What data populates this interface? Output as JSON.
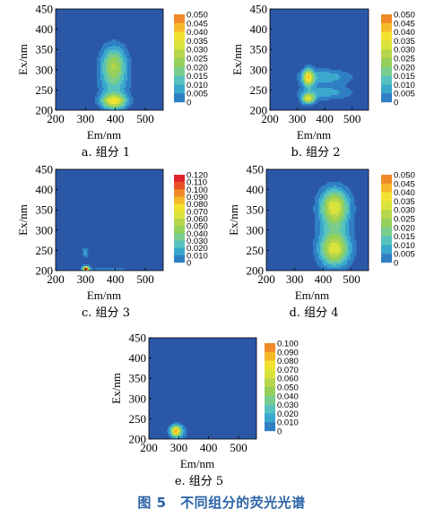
{
  "figure_title": "图 5　不同组分的荧光光谱",
  "chart_data": [
    {
      "type": "heatmap",
      "caption": "a. 组分 1",
      "xlabel": "Em/nm",
      "ylabel": "Ex/nm",
      "xlim": [
        200,
        560
      ],
      "ylim": [
        200,
        450
      ],
      "xticks": [
        200,
        300,
        400,
        500
      ],
      "yticks": [
        200,
        250,
        300,
        350,
        400,
        450
      ],
      "colorbar": {
        "min": 0,
        "max": 0.05,
        "ticks": [
          "0.050",
          "0.045",
          "0.040",
          "0.035",
          "0.030",
          "0.025",
          "0.020",
          "0.015",
          "0.010",
          "0.005",
          "0"
        ]
      },
      "peaks": [
        {
          "em": 395,
          "ex": 222,
          "intensity": 0.036,
          "sx": 28,
          "sy": 12
        },
        {
          "em": 395,
          "ex": 315,
          "intensity": 0.025,
          "sx": 30,
          "sy": 32
        },
        {
          "em": 395,
          "ex": 260,
          "intensity": 0.013,
          "sx": 35,
          "sy": 40
        }
      ]
    },
    {
      "type": "heatmap",
      "caption": "b. 组分 2",
      "xlabel": "Em/nm",
      "ylabel": "Ex/nm",
      "xlim": [
        200,
        560
      ],
      "ylim": [
        200,
        450
      ],
      "xticks": [
        200,
        300,
        400,
        500
      ],
      "yticks": [
        200,
        250,
        300,
        350,
        400,
        450
      ],
      "colorbar": {
        "min": 0,
        "max": 0.05,
        "ticks": [
          "0.050",
          "0.045",
          "0.040",
          "0.035",
          "0.030",
          "0.025",
          "0.020",
          "0.015",
          "0.010",
          "0.005",
          "0"
        ]
      },
      "peaks": [
        {
          "em": 340,
          "ex": 280,
          "intensity": 0.037,
          "sx": 14,
          "sy": 15
        },
        {
          "em": 340,
          "ex": 228,
          "intensity": 0.036,
          "sx": 16,
          "sy": 9
        },
        {
          "em": 400,
          "ex": 282,
          "intensity": 0.014,
          "sx": 70,
          "sy": 14
        },
        {
          "em": 400,
          "ex": 243,
          "intensity": 0.013,
          "sx": 70,
          "sy": 12
        }
      ]
    },
    {
      "type": "heatmap",
      "caption": "c. 组分 3",
      "xlabel": "Em/nm",
      "ylabel": "Ex/nm",
      "xlim": [
        200,
        560
      ],
      "ylim": [
        200,
        450
      ],
      "xticks": [
        200,
        300,
        400,
        500
      ],
      "yticks": [
        200,
        250,
        300,
        350,
        400,
        450
      ],
      "colorbar": {
        "min": 0,
        "max": 0.12,
        "ticks": [
          "0.120",
          "0.110",
          "0.100",
          "0.090",
          "0.080",
          "0.070",
          "0.060",
          "0.050",
          "0.040",
          "0.030",
          "0.020",
          "0.010",
          "0"
        ]
      },
      "peaks": [
        {
          "em": 302,
          "ex": 204,
          "intensity": 0.115,
          "sx": 8,
          "sy": 5
        },
        {
          "em": 300,
          "ex": 245,
          "intensity": 0.025,
          "sx": 7,
          "sy": 9
        },
        {
          "em": 380,
          "ex": 202,
          "intensity": 0.02,
          "sx": 45,
          "sy": 4
        }
      ]
    },
    {
      "type": "heatmap",
      "caption": "d. 组分 4",
      "xlabel": "Em/nm",
      "ylabel": "Ex/nm",
      "xlim": [
        200,
        560
      ],
      "ylim": [
        200,
        450
      ],
      "xticks": [
        200,
        300,
        400,
        500
      ],
      "yticks": [
        200,
        250,
        300,
        350,
        400,
        450
      ],
      "colorbar": {
        "min": 0,
        "max": 0.05,
        "ticks": [
          "0.050",
          "0.045",
          "0.040",
          "0.035",
          "0.030",
          "0.025",
          "0.020",
          "0.015",
          "0.010",
          "0.005",
          "0"
        ]
      },
      "peaks": [
        {
          "em": 440,
          "ex": 360,
          "intensity": 0.034,
          "sx": 35,
          "sy": 30
        },
        {
          "em": 440,
          "ex": 250,
          "intensity": 0.033,
          "sx": 37,
          "sy": 28
        },
        {
          "em": 440,
          "ex": 305,
          "intensity": 0.012,
          "sx": 40,
          "sy": 45
        }
      ]
    },
    {
      "type": "heatmap",
      "caption": "e. 组分 5",
      "xlabel": "Em/nm",
      "ylabel": "Ex/nm",
      "xlim": [
        200,
        560
      ],
      "ylim": [
        200,
        450
      ],
      "xticks": [
        200,
        300,
        400,
        500
      ],
      "yticks": [
        200,
        250,
        300,
        350,
        400,
        450
      ],
      "colorbar": {
        "min": 0,
        "max": 0.1,
        "ticks": [
          "0.100",
          "0.090",
          "0.080",
          "0.070",
          "0.060",
          "0.050",
          "0.040",
          "0.030",
          "0.020",
          "0.010",
          "0"
        ]
      },
      "peaks": [
        {
          "em": 290,
          "ex": 220,
          "intensity": 0.085,
          "sx": 12,
          "sy": 9
        },
        {
          "em": 300,
          "ex": 218,
          "intensity": 0.02,
          "sx": 22,
          "sy": 14
        }
      ]
    }
  ]
}
